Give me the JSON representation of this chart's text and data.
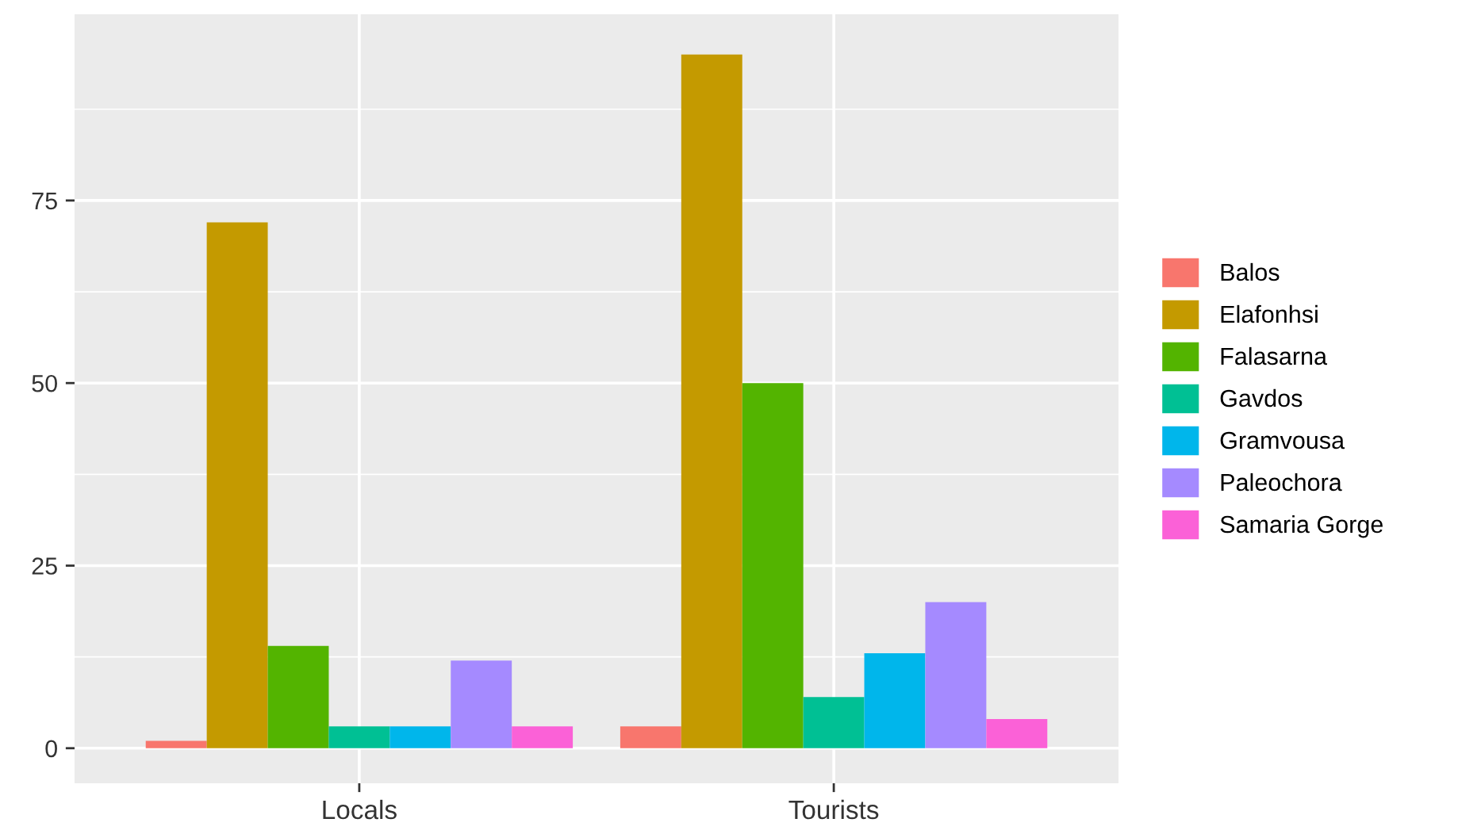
{
  "chart_data": {
    "type": "bar",
    "categories": [
      "Locals",
      "Tourists"
    ],
    "series": [
      {
        "name": "Balos",
        "color": "#f8766d",
        "values": [
          1,
          3
        ]
      },
      {
        "name": "Elafonhsi",
        "color": "#c49a00",
        "values": [
          72,
          95
        ]
      },
      {
        "name": "Falasarna",
        "color": "#53b400",
        "values": [
          14,
          50
        ]
      },
      {
        "name": "Gavdos",
        "color": "#00c094",
        "values": [
          3,
          7
        ]
      },
      {
        "name": "Gramvousa",
        "color": "#00b6eb",
        "values": [
          3,
          13
        ]
      },
      {
        "name": "Paleochora",
        "color": "#a58aff",
        "values": [
          12,
          20
        ]
      },
      {
        "name": "Samaria Gorge",
        "color": "#fb61d7",
        "values": [
          3,
          4
        ]
      }
    ],
    "ylim": [
      -4.8,
      100.5
    ],
    "yticks": [
      0,
      25,
      50,
      75
    ],
    "grid": true,
    "legend": "right"
  }
}
